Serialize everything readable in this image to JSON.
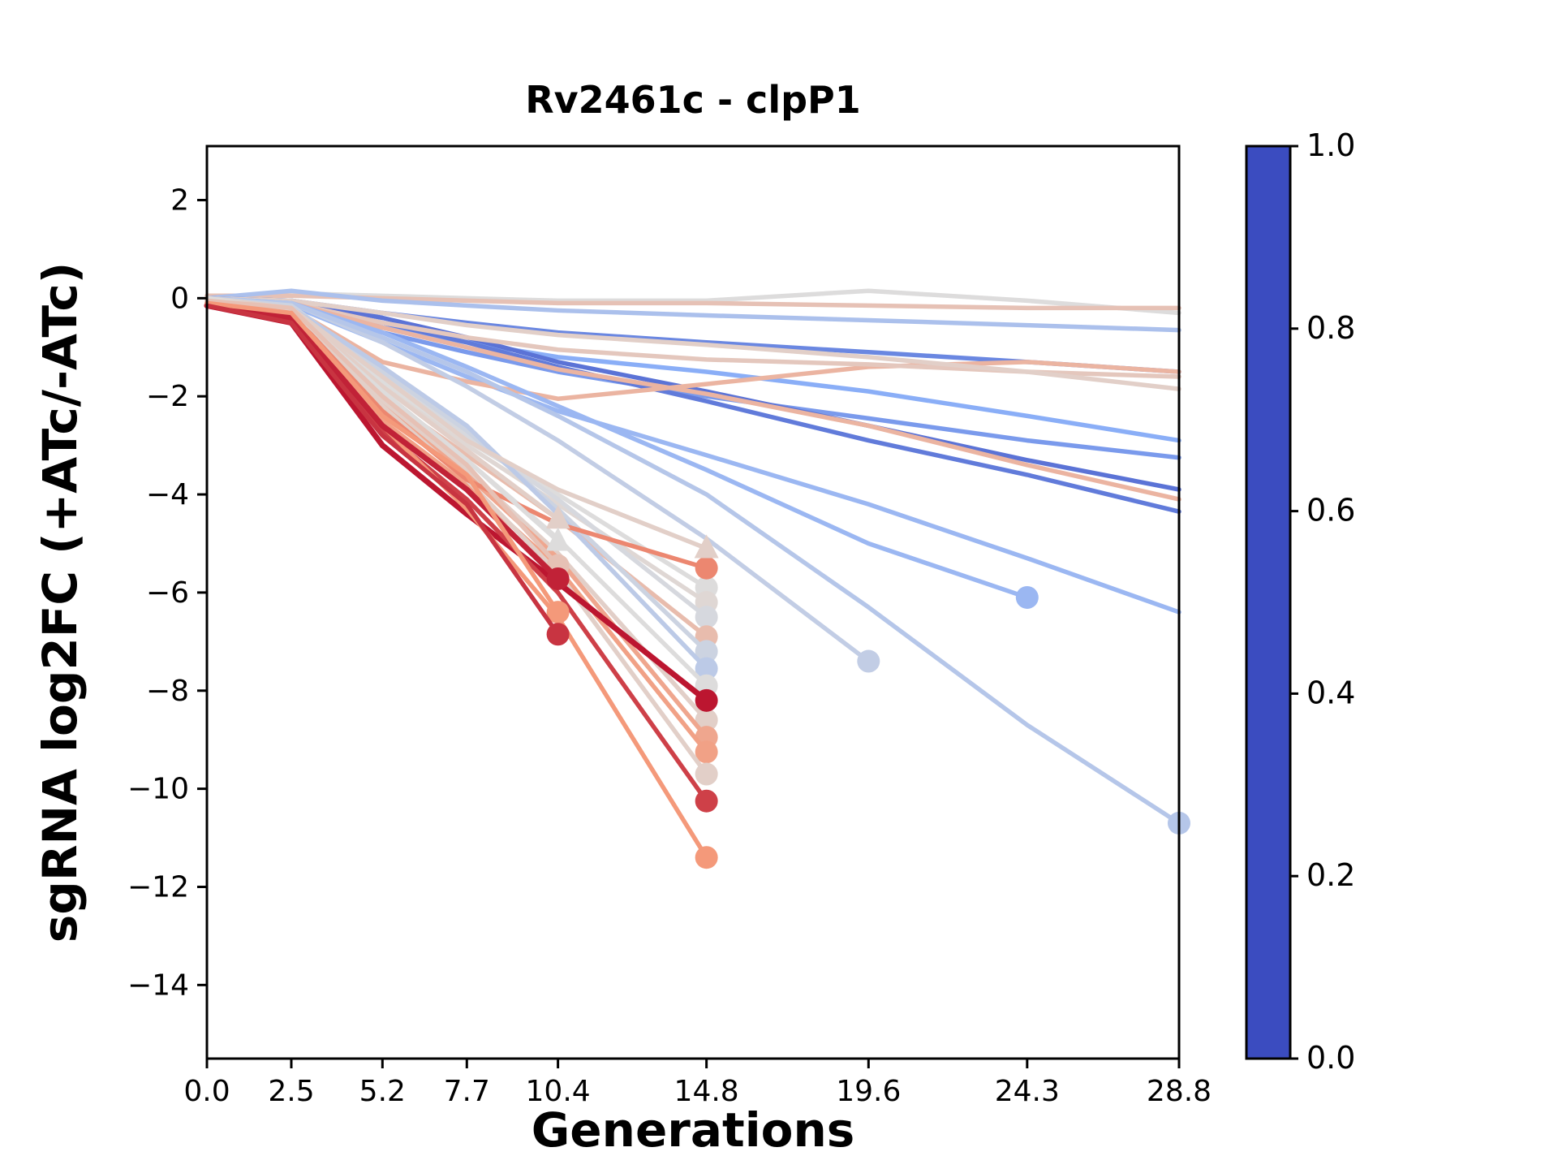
{
  "title": "Rv2461c - clpP1",
  "xlabel": "Generations",
  "ylabel": "sgRNA log2FC (+ATc/-ATc)",
  "chart_data": {
    "type": "line",
    "title": "Rv2461c - clpP1",
    "xlabel": "Generations",
    "ylabel": "sgRNA log2FC (+ATc/-ATc)",
    "grid": false,
    "xlim": [
      0,
      28.8
    ],
    "ylim": [
      -15.5,
      3.1
    ],
    "x_points": [
      0,
      2.5,
      5.2,
      7.7,
      10.4,
      14.8,
      19.6,
      24.3,
      28.8
    ],
    "x_tick_labels": [
      "0.0",
      "2.5",
      "5.2",
      "7.7",
      "10.4",
      "14.8",
      "19.6",
      "24.3",
      "28.8"
    ],
    "y_ticks": [
      2,
      0,
      -2,
      -4,
      -6,
      -8,
      -10,
      -12,
      -14
    ],
    "colorbar": {
      "min": 0.0,
      "max": 1.0,
      "tick_values": [
        1.0,
        0.8,
        0.6,
        0.4,
        0.2,
        0.0
      ]
    },
    "colormap": {
      "name": "coolwarm",
      "anchors": [
        {
          "t": 0.0,
          "color": "#3b4cc0"
        },
        {
          "t": 0.25,
          "color": "#8aaef7"
        },
        {
          "t": 0.5,
          "color": "#dddcdc"
        },
        {
          "t": 0.75,
          "color": "#f4997a"
        },
        {
          "t": 1.0,
          "color": "#b40426"
        }
      ]
    },
    "series": [
      {
        "c": 0.5,
        "y": [
          0,
          0.1,
          0.05,
          0,
          -0.05,
          -0.05,
          0.15,
          -0.05,
          -0.3
        ]
      },
      {
        "c": 0.6,
        "y": [
          0.05,
          0.05,
          0,
          -0.05,
          -0.1,
          -0.1,
          -0.15,
          -0.2,
          -0.2
        ]
      },
      {
        "c": 0.35,
        "y": [
          0,
          0.15,
          -0.05,
          -0.15,
          -0.25,
          -0.35,
          -0.45,
          -0.55,
          -0.65
        ]
      },
      {
        "c": 0.15,
        "y": [
          0,
          -0.05,
          -0.3,
          -0.5,
          -0.7,
          -0.9,
          -1.1,
          -1.3,
          -1.5
        ]
      },
      {
        "c": 0.25,
        "y": [
          0,
          -0.1,
          -0.6,
          -0.9,
          -1.2,
          -1.5,
          -1.9,
          -2.4,
          -2.9
        ]
      },
      {
        "c": 0.2,
        "y": [
          0,
          -0.1,
          -0.7,
          -1.1,
          -1.5,
          -2.0,
          -2.45,
          -2.9,
          -3.25
        ]
      },
      {
        "c": 0.1,
        "y": [
          0,
          -0.05,
          -0.4,
          -0.8,
          -1.3,
          -1.9,
          -2.6,
          -3.3,
          -3.9
        ]
      },
      {
        "c": 0.12,
        "y": [
          0,
          -0.1,
          -0.5,
          -0.9,
          -1.4,
          -2.1,
          -2.9,
          -3.6,
          -4.35
        ]
      },
      {
        "c": 0.3,
        "y": [
          0,
          -0.15,
          -0.9,
          -1.6,
          -2.3,
          -3.2,
          -4.2,
          -5.3,
          -6.4
        ]
      },
      {
        "c": 0.65,
        "y": [
          0,
          -0.2,
          -1.3,
          -1.7,
          -2.05,
          -1.75,
          -1.4,
          -1.3,
          -1.5
        ]
      },
      {
        "c": 0.58,
        "y": [
          0,
          -0.1,
          -0.5,
          -0.8,
          -1.05,
          -1.25,
          -1.35,
          -1.5,
          -1.6
        ]
      },
      {
        "c": 0.55,
        "y": [
          0,
          -0.05,
          -0.3,
          -0.55,
          -0.75,
          -0.95,
          -1.2,
          -1.5,
          -1.85
        ]
      },
      {
        "c": 0.65,
        "y": [
          0,
          -0.1,
          -0.6,
          -1.0,
          -1.45,
          -1.95,
          -2.6,
          -3.4,
          -4.1
        ]
      },
      {
        "c": 0.42,
        "y": [
          0,
          -0.1,
          -0.9,
          -1.8,
          -2.9,
          -4.9,
          -7.4
        ],
        "m": "o"
      },
      {
        "c": 0.3,
        "y": [
          0,
          -0.1,
          -0.7,
          -1.4,
          -2.2,
          -3.5,
          -5.0,
          -6.1
        ],
        "m": "o"
      },
      {
        "c": 0.38,
        "y": [
          0,
          -0.1,
          -0.8,
          -1.5,
          -2.4,
          -4.0,
          -6.3,
          -8.7,
          -10.7
        ],
        "m": "o"
      },
      {
        "c": 0.5,
        "y": [
          0,
          -0.2,
          -1.7,
          -2.9,
          -4.0,
          -5.9
        ],
        "m": "o"
      },
      {
        "c": 0.52,
        "y": [
          0,
          -0.25,
          -1.8,
          -3.0,
          -4.2,
          -6.2
        ],
        "m": "o"
      },
      {
        "c": 0.48,
        "y": [
          0,
          -0.2,
          -1.6,
          -2.8,
          -4.1,
          -6.5
        ],
        "m": "o"
      },
      {
        "c": 0.62,
        "y": [
          -0.05,
          -0.3,
          -2.0,
          -3.2,
          -4.5,
          -6.9
        ],
        "m": "o"
      },
      {
        "c": 0.45,
        "y": [
          0,
          -0.15,
          -1.5,
          -2.7,
          -4.3,
          -7.2
        ],
        "m": "o"
      },
      {
        "c": 0.4,
        "y": [
          0,
          -0.2,
          -1.4,
          -2.6,
          -4.4,
          -7.55
        ],
        "m": "o"
      },
      {
        "c": 0.5,
        "y": [
          0,
          -0.2,
          -1.9,
          -3.3,
          -4.9,
          -7.9
        ],
        "m": "o"
      },
      {
        "c": 0.55,
        "y": [
          -0.05,
          -0.3,
          -2.1,
          -3.5,
          -5.2,
          -8.6
        ],
        "m": "o"
      },
      {
        "c": 0.7,
        "y": [
          -0.1,
          -0.35,
          -2.2,
          -3.6,
          -5.3,
          -8.95
        ],
        "m": "o"
      },
      {
        "c": 0.72,
        "y": [
          -0.1,
          -0.4,
          -2.5,
          -3.8,
          -5.5,
          -9.25
        ],
        "m": "o"
      },
      {
        "c": 0.55,
        "y": [
          0,
          -0.3,
          -2.2,
          -3.7,
          -5.6,
          -9.7
        ],
        "m": "o"
      },
      {
        "c": 0.78,
        "y": [
          -0.1,
          -0.3,
          -2.3,
          -3.7,
          -4.6,
          -5.5
        ],
        "m": "o"
      },
      {
        "c": 0.55,
        "y": [
          0,
          -0.2,
          -1.6,
          -2.9,
          -3.9,
          -5.1
        ],
        "m": "^"
      },
      {
        "c": 0.97,
        "y": [
          -0.15,
          -0.5,
          -3.0,
          -4.4,
          -5.8,
          -8.2
        ],
        "m": "o",
        "lw": 7
      },
      {
        "c": 0.9,
        "y": [
          -0.1,
          -0.45,
          -2.7,
          -4.1,
          -6.0,
          -10.25
        ],
        "m": "o"
      },
      {
        "c": 0.75,
        "y": [
          -0.1,
          -0.4,
          -2.6,
          -4.3,
          -6.5,
          -11.4
        ],
        "m": "o"
      },
      {
        "c": 0.55,
        "y": [
          0,
          -0.2,
          -1.8,
          -3.1,
          -4.5
        ],
        "m": "^"
      },
      {
        "c": 0.5,
        "y": [
          0,
          -0.25,
          -1.9,
          -3.3,
          -4.95
        ],
        "m": "^"
      },
      {
        "c": 0.6,
        "y": [
          -0.05,
          -0.2,
          -2.0,
          -3.4,
          -5.45
        ],
        "m": "o"
      },
      {
        "c": 0.95,
        "y": [
          -0.15,
          -0.4,
          -2.6,
          -3.9,
          -5.72
        ],
        "m": "o",
        "lw": 7
      },
      {
        "c": 0.75,
        "y": [
          -0.1,
          -0.3,
          -2.4,
          -3.6,
          -6.4
        ],
        "m": "o"
      },
      {
        "c": 0.92,
        "y": [
          -0.15,
          -0.5,
          -2.8,
          -4.2,
          -6.85
        ],
        "m": "o"
      }
    ]
  }
}
